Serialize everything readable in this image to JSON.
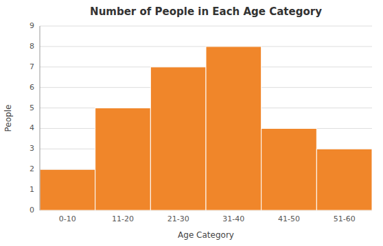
{
  "chart_data": {
    "type": "bar",
    "title": "Number of People in Each Age Category",
    "xlabel": "Age Category",
    "ylabel": "People",
    "categories": [
      "0-10",
      "11-20",
      "21-30",
      "31-40",
      "41-50",
      "51-60"
    ],
    "values": [
      2,
      5,
      7,
      8,
      4,
      3
    ],
    "color": "#F0862A",
    "ylim": [
      0,
      9
    ],
    "yticks": [
      0,
      1,
      2,
      3,
      4,
      5,
      6,
      7,
      8,
      9
    ],
    "grid": true
  }
}
